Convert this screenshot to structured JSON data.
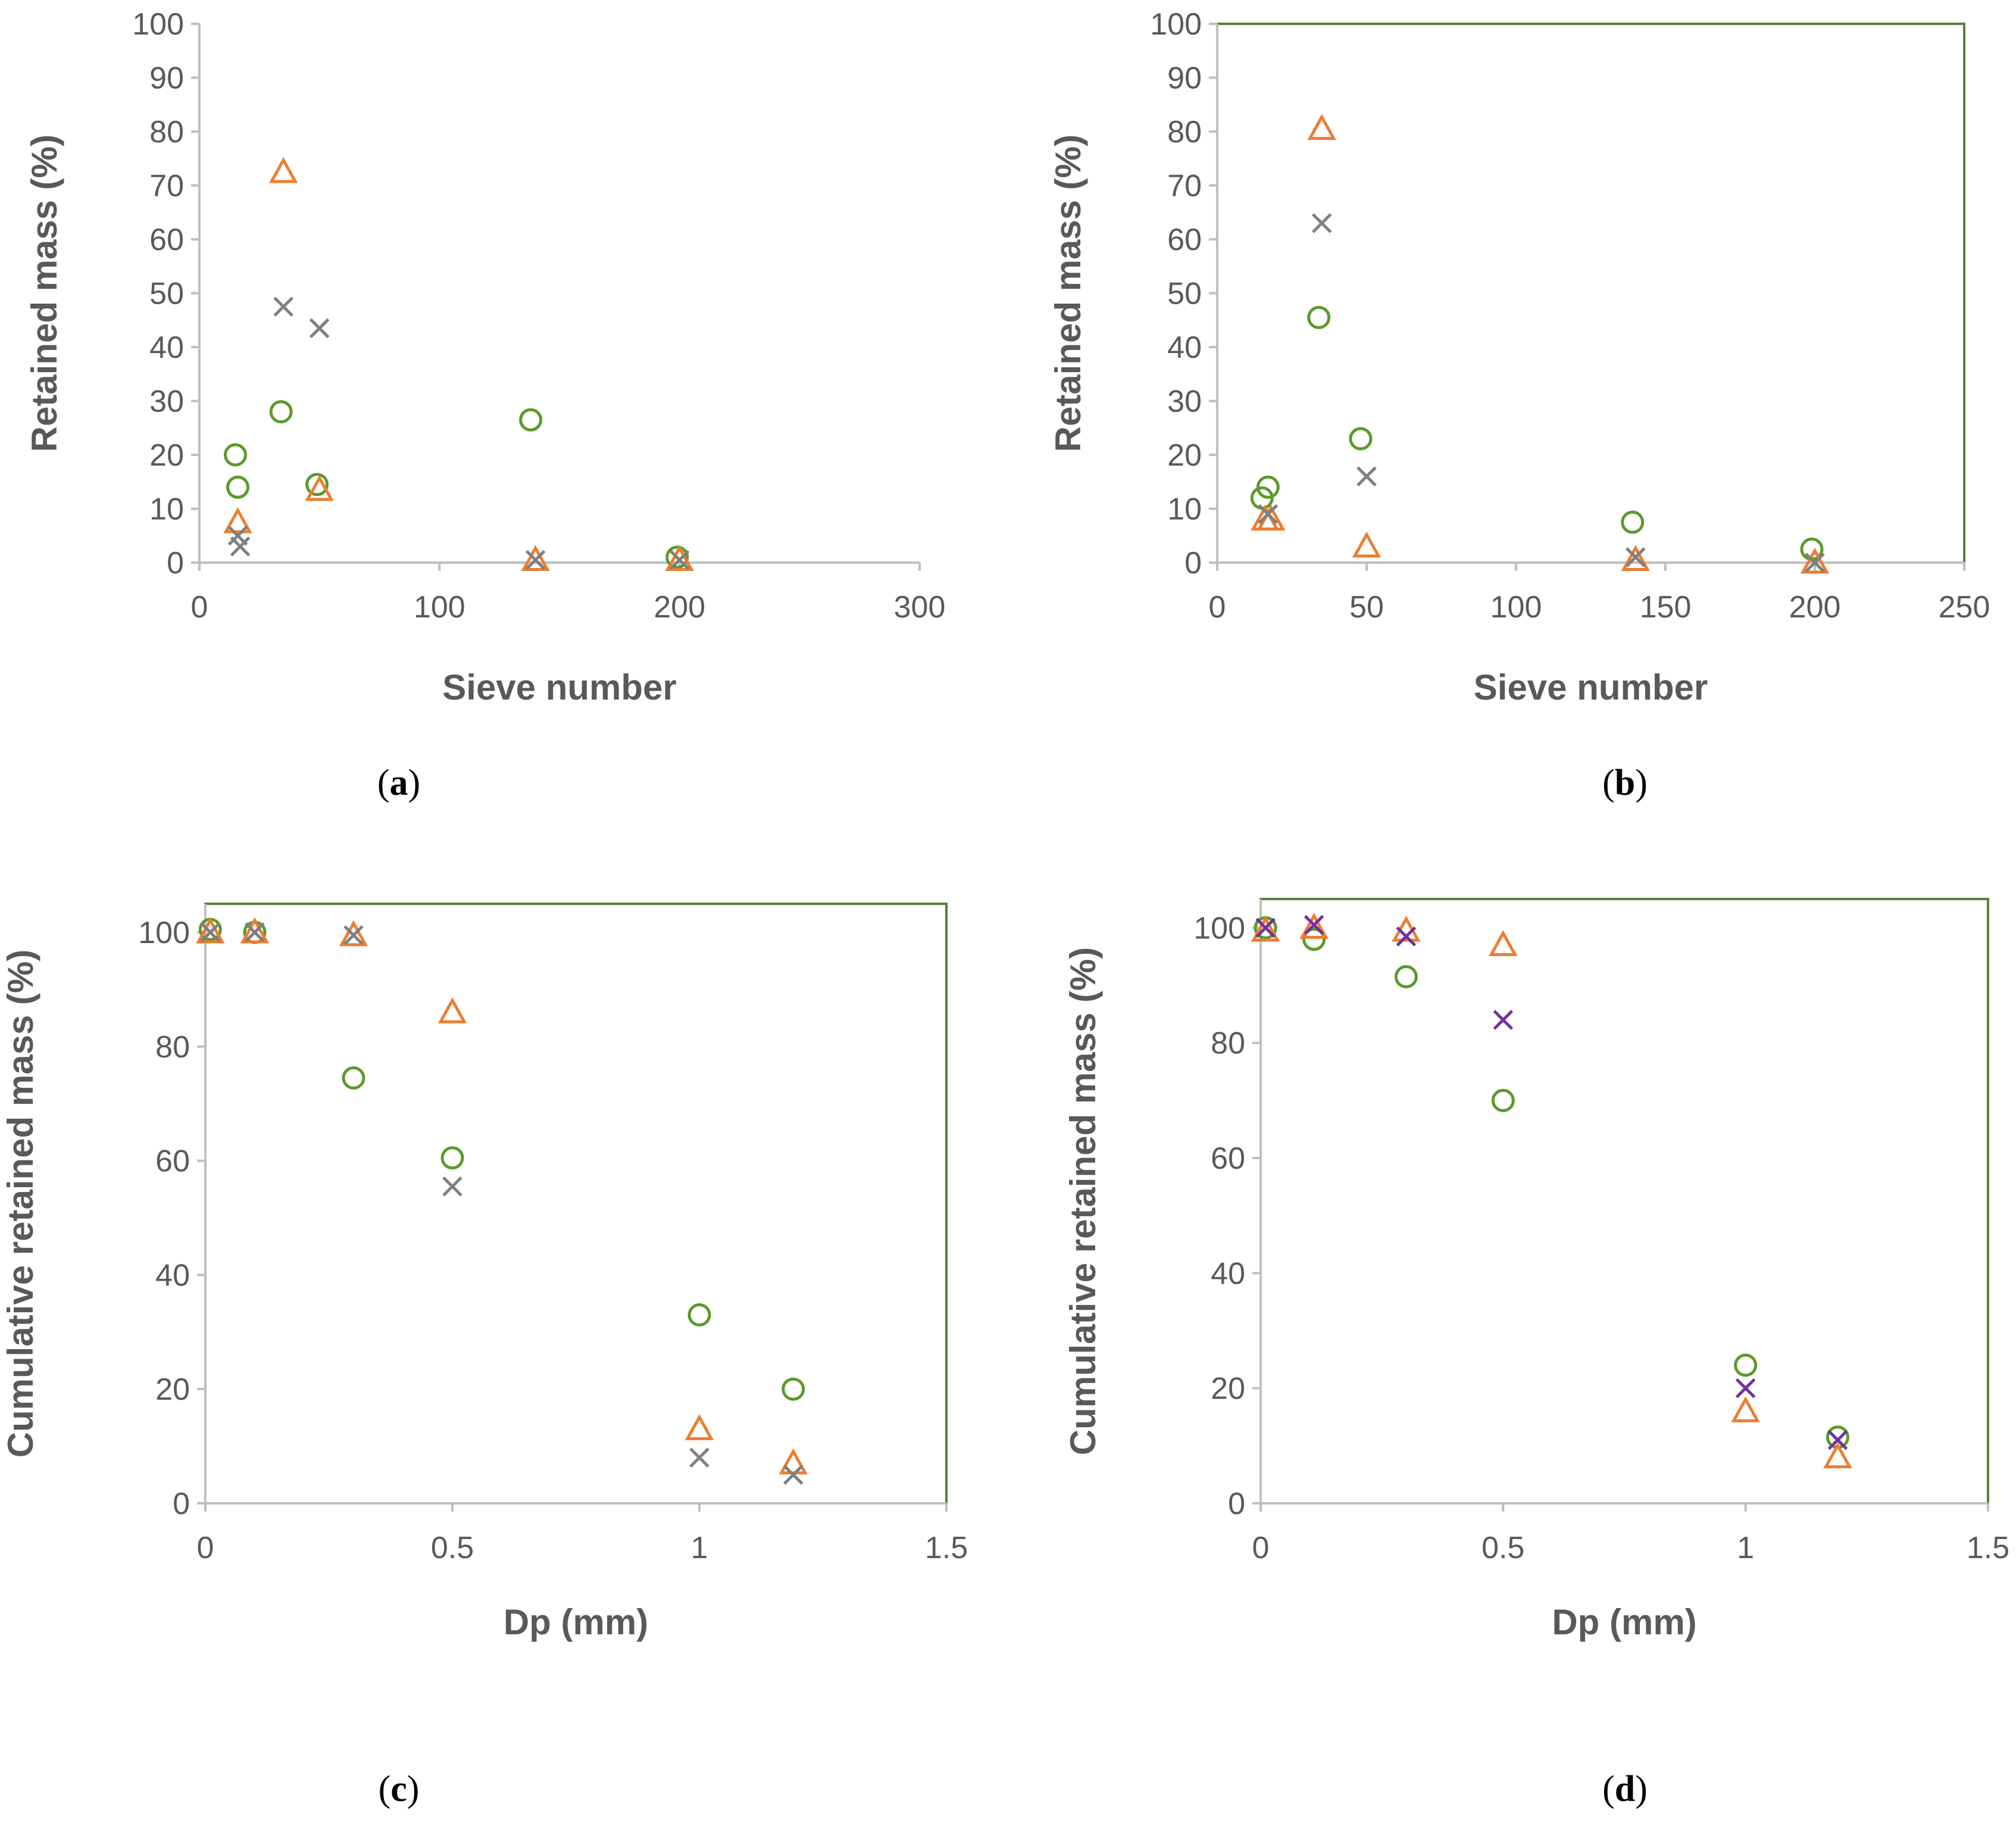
{
  "figure": {
    "colors": {
      "circle": "#5a9a2a",
      "triangle": "#ed7d31",
      "cross_gray": "#7f7f7f",
      "cross_purple": "#7030a0",
      "axis": "#bfbfbf",
      "frame": "#548235",
      "text": "#595959"
    }
  },
  "chart_data": [
    {
      "id": "a",
      "type": "scatter",
      "panel_label": "a",
      "xlabel": "Sieve number",
      "ylabel": "Retained mass (%)",
      "xlim": [
        0,
        300
      ],
      "ylim": [
        0,
        100
      ],
      "xticks": [
        0,
        100,
        200,
        300
      ],
      "yticks": [
        0,
        10,
        20,
        30,
        40,
        50,
        60,
        70,
        80,
        90,
        100
      ],
      "frame": false,
      "series": [
        {
          "name": "circle",
          "marker": "circle",
          "color": "#5a9a2a",
          "x": [
            15,
            16,
            34,
            49,
            138,
            199
          ],
          "y": [
            20,
            14,
            28,
            14.5,
            26.5,
            1
          ]
        },
        {
          "name": "triangle",
          "marker": "triangle",
          "color": "#ed7d31",
          "x": [
            16,
            35,
            50,
            140,
            200
          ],
          "y": [
            7.5,
            72.5,
            13.5,
            0.5,
            0.5
          ]
        },
        {
          "name": "cross",
          "marker": "cross",
          "color": "#7f7f7f",
          "x": [
            16,
            17,
            35,
            50,
            140,
            200
          ],
          "y": [
            5,
            3,
            47.5,
            43.5,
            0.5,
            0.5
          ]
        }
      ]
    },
    {
      "id": "b",
      "type": "scatter",
      "panel_label": "b",
      "xlabel": "Sieve number",
      "ylabel": "Retained mass (%)",
      "xlim": [
        0,
        250
      ],
      "ylim": [
        0,
        100
      ],
      "xticks": [
        0,
        50,
        100,
        150,
        200,
        250
      ],
      "yticks": [
        0,
        10,
        20,
        30,
        40,
        50,
        60,
        70,
        80,
        90,
        100
      ],
      "frame": true,
      "series": [
        {
          "name": "circle",
          "marker": "circle",
          "color": "#5a9a2a",
          "x": [
            15,
            17,
            34,
            48,
            139,
            199
          ],
          "y": [
            12,
            14,
            45.5,
            23,
            7.5,
            2.5
          ]
        },
        {
          "name": "triangle",
          "marker": "triangle",
          "color": "#ed7d31",
          "x": [
            16,
            18,
            35,
            50,
            140,
            200
          ],
          "y": [
            8,
            8,
            80.5,
            3,
            0.5,
            0
          ]
        },
        {
          "name": "cross",
          "marker": "cross",
          "color": "#7f7f7f",
          "x": [
            17,
            35,
            50,
            140,
            200
          ],
          "y": [
            9,
            63,
            16,
            1,
            0
          ]
        }
      ]
    },
    {
      "id": "c",
      "type": "scatter",
      "panel_label": "c",
      "xlabel": "Dp (mm)",
      "ylabel": "Cumulative retained mass (%)",
      "xlim": [
        0,
        1.5
      ],
      "ylim": [
        0,
        105
      ],
      "xticks": [
        0,
        0.5,
        1,
        1.5
      ],
      "yticks": [
        0,
        20,
        40,
        60,
        80,
        100
      ],
      "frame": true,
      "series": [
        {
          "name": "circle",
          "marker": "circle",
          "color": "#5a9a2a",
          "x": [
            0.01,
            0.1,
            0.3,
            0.5,
            1.0,
            1.19
          ],
          "y": [
            100.5,
            100,
            74.5,
            60.5,
            33,
            20
          ]
        },
        {
          "name": "triangle",
          "marker": "triangle",
          "color": "#ed7d31",
          "x": [
            0.01,
            0.1,
            0.3,
            0.5,
            1.0,
            1.19
          ],
          "y": [
            100,
            100,
            99.5,
            86,
            13,
            7
          ]
        },
        {
          "name": "cross",
          "marker": "cross",
          "color": "#7f7f7f",
          "x": [
            0.01,
            0.1,
            0.3,
            0.5,
            1.0,
            1.19
          ],
          "y": [
            100,
            100,
            99.5,
            55.5,
            8,
            5
          ]
        }
      ]
    },
    {
      "id": "d",
      "type": "scatter",
      "panel_label": "d",
      "xlabel": "Dp (mm)",
      "ylabel": "Cumulative retained mass (%)",
      "xlim": [
        0,
        1.5
      ],
      "ylim": [
        0,
        105
      ],
      "xticks": [
        0,
        0.5,
        1,
        1.5
      ],
      "yticks": [
        0,
        20,
        40,
        60,
        80,
        100
      ],
      "frame": true,
      "series": [
        {
          "name": "circle",
          "marker": "circle",
          "color": "#5a9a2a",
          "x": [
            0.01,
            0.11,
            0.3,
            0.5,
            1.0,
            1.19
          ],
          "y": [
            100,
            98,
            91.5,
            70,
            24,
            11.5
          ]
        },
        {
          "name": "triangle",
          "marker": "triangle",
          "color": "#ed7d31",
          "x": [
            0.01,
            0.11,
            0.3,
            0.5,
            1.0,
            1.19
          ],
          "y": [
            99.5,
            100,
            99.5,
            97,
            16,
            8
          ]
        },
        {
          "name": "cross",
          "marker": "cross",
          "color": "#7030a0",
          "x": [
            0.01,
            0.11,
            0.3,
            0.5,
            1.0,
            1.19
          ],
          "y": [
            100,
            100.5,
            98.5,
            84,
            20,
            11
          ]
        }
      ]
    }
  ]
}
